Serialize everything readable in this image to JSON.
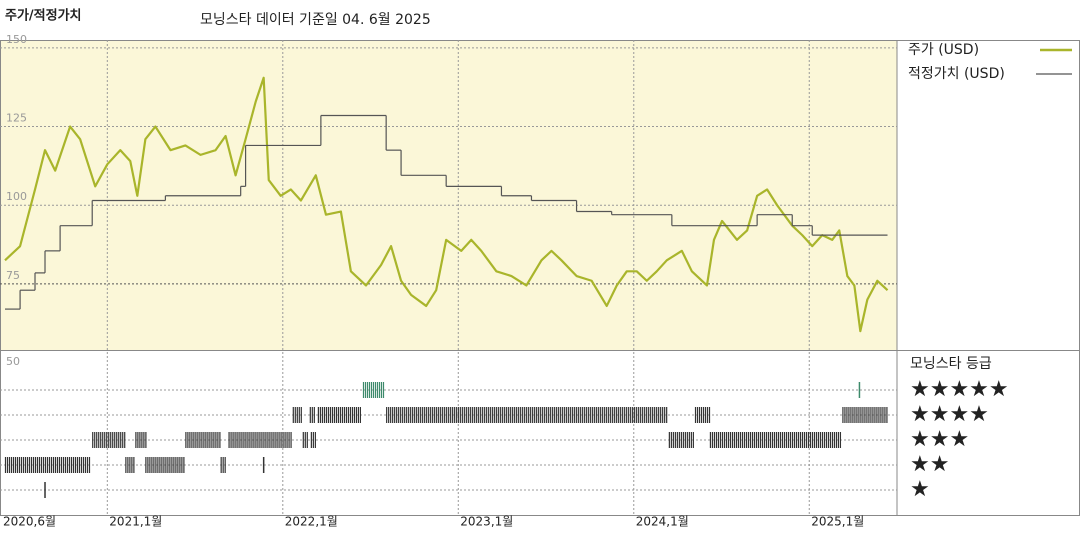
{
  "chart_data": {
    "type": "line",
    "title": "주가/적정가치",
    "subtitle": "모닝스타 데이터 기준일 04. 6월 2025",
    "series": [
      {
        "name": "주가 (USD)",
        "color": "#a9b52b",
        "x": [
          2020.417,
          2020.503,
          2020.588,
          2020.645,
          2020.703,
          2020.788,
          2020.845,
          2020.931,
          2021.0,
          2021.074,
          2021.131,
          2021.171,
          2021.217,
          2021.274,
          2021.36,
          2021.445,
          2021.531,
          2021.617,
          2021.674,
          2021.731,
          2021.788,
          2021.846,
          2021.891,
          2021.92,
          2021.988,
          2022.046,
          2022.103,
          2022.188,
          2022.246,
          2022.331,
          2022.388,
          2022.474,
          2022.56,
          2022.617,
          2022.674,
          2022.731,
          2022.817,
          2022.874,
          2022.931,
          2023.017,
          2023.074,
          2023.131,
          2023.217,
          2023.303,
          2023.388,
          2023.474,
          2023.531,
          2023.588,
          2023.674,
          2023.76,
          2023.846,
          2023.903,
          2023.96,
          2024.017,
          2024.074,
          2024.131,
          2024.188,
          2024.274,
          2024.331,
          2024.417,
          2024.457,
          2024.503,
          2024.588,
          2024.646,
          2024.703,
          2024.76,
          2024.817,
          2024.903,
          2024.96,
          2025.017,
          2025.074,
          2025.131,
          2025.171,
          2025.217,
          2025.257,
          2025.291,
          2025.331,
          2025.388,
          2025.446
        ],
        "values": [
          82.5,
          87,
          105,
          117.5,
          111,
          125,
          121,
          106,
          113,
          117.5,
          114,
          103,
          121,
          125,
          117.5,
          119,
          116,
          117.5,
          122,
          109.5,
          121,
          133,
          140.5,
          108,
          103,
          105,
          101.5,
          109.5,
          97,
          98,
          79,
          74.5,
          81,
          87,
          76,
          71.5,
          68,
          73,
          89,
          85.5,
          89,
          85.5,
          79,
          77.5,
          74.5,
          82.5,
          85.5,
          82.5,
          77.5,
          76,
          68,
          74.5,
          79,
          79,
          76,
          79,
          82.5,
          85.5,
          79,
          74.5,
          89,
          95,
          89,
          92,
          103,
          105,
          100,
          93.5,
          90.5,
          87,
          90.5,
          89,
          92,
          77.5,
          74.5,
          60,
          70,
          76,
          73
        ]
      },
      {
        "name": "적정가치 (USD)",
        "color": "#555555",
        "step": true,
        "x": [
          2020.417,
          2020.503,
          2020.588,
          2020.645,
          2020.731,
          2020.914,
          2021.331,
          2021.76,
          2021.788,
          2022.217,
          2022.589,
          2022.674,
          2022.931,
          2023.246,
          2023.417,
          2023.674,
          2023.874,
          2024.217,
          2024.703,
          2024.903,
          2025.017,
          2025.446
        ],
        "values": [
          67,
          73,
          78.5,
          85.5,
          93.5,
          101.5,
          103,
          106,
          119,
          128.5,
          117.5,
          109.5,
          106,
          103,
          101.5,
          98,
          97,
          93.5,
          97,
          93.5,
          90.5,
          90.5
        ]
      }
    ],
    "xlim": [
      2020.417,
      2025.5
    ],
    "xticks": [
      {
        "value": 2020.417,
        "label": "2020,6월"
      },
      {
        "value": 2021,
        "label": "2021,1월"
      },
      {
        "value": 2022,
        "label": "2022,1월"
      },
      {
        "value": 2023,
        "label": "2023,1월"
      },
      {
        "value": 2024,
        "label": "2024,1월"
      },
      {
        "value": 2025,
        "label": "2025,1월"
      }
    ],
    "ylim": [
      54,
      152.5
    ],
    "yticks": [
      75,
      100,
      125,
      150
    ],
    "grid": true,
    "background": "#fbf7d8",
    "rating": {
      "title": "모닝스타 등급",
      "axis_label": "50",
      "levels": [
        5,
        4,
        3,
        2,
        1
      ],
      "level_labels": [
        "★★★★★",
        "★★★★",
        "★★★",
        "★★",
        "★"
      ],
      "color": "#333333",
      "top_color": "#3d8a6b",
      "periods": [
        {
          "x0": 2020.417,
          "x1": 2020.903,
          "stars": 2
        },
        {
          "x0": 2020.645,
          "x1": 2020.645,
          "stars": 1
        },
        {
          "x0": 2020.914,
          "x1": 2021.103,
          "stars": 3
        },
        {
          "x0": 2021.103,
          "x1": 2021.149,
          "stars": 2
        },
        {
          "x0": 2021.16,
          "x1": 2021.217,
          "stars": 3
        },
        {
          "x0": 2021.217,
          "x1": 2021.434,
          "stars": 2
        },
        {
          "x0": 2021.445,
          "x1": 2021.646,
          "stars": 3
        },
        {
          "x0": 2021.646,
          "x1": 2021.68,
          "stars": 2
        },
        {
          "x0": 2021.691,
          "x1": 2022.046,
          "stars": 3
        },
        {
          "x0": 2021.891,
          "x1": 2021.891,
          "stars": 2
        },
        {
          "x0": 2022.057,
          "x1": 2022.103,
          "stars": 4
        },
        {
          "x0": 2022.114,
          "x1": 2022.143,
          "stars": 3
        },
        {
          "x0": 2022.154,
          "x1": 2022.183,
          "stars": 4
        },
        {
          "x0": 2022.16,
          "x1": 2022.183,
          "stars": 3
        },
        {
          "x0": 2022.2,
          "x1": 2022.446,
          "stars": 4
        },
        {
          "x0": 2022.457,
          "x1": 2022.577,
          "stars": 5
        },
        {
          "x0": 2022.589,
          "x1": 2024.188,
          "stars": 4
        },
        {
          "x0": 2024.2,
          "x1": 2024.343,
          "stars": 3
        },
        {
          "x0": 2024.349,
          "x1": 2024.429,
          "stars": 4
        },
        {
          "x0": 2024.434,
          "x1": 2025.177,
          "stars": 3
        },
        {
          "x0": 2025.189,
          "x1": 2025.446,
          "stars": 4
        },
        {
          "x0": 2025.286,
          "x1": 2025.286,
          "stars": 5
        }
      ]
    }
  }
}
